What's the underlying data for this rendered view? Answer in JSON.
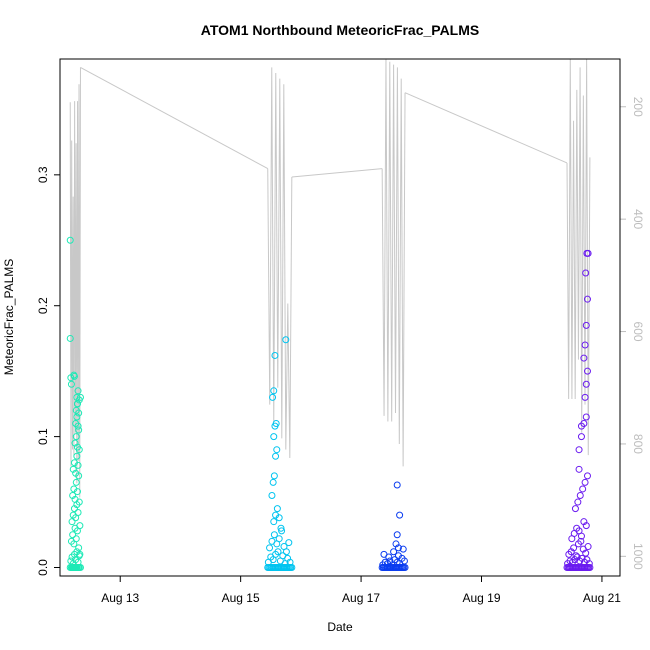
{
  "chart_data": {
    "type": "scatter",
    "title": "ATOM1 Northbound MeteoricFrac_PALMS",
    "xlabel": "Date",
    "ylabel": "MeteoricFrac_PALMS",
    "x_ticks": [
      "Aug 13",
      "Aug 15",
      "Aug 17",
      "Aug 19",
      "Aug 21"
    ],
    "x_tick_values": [
      13,
      15,
      17,
      19,
      21
    ],
    "xlim": [
      12.0,
      21.3
    ],
    "y_ticks": [
      "0.0",
      "0.1",
      "0.2",
      "0.3"
    ],
    "y_tick_values": [
      0,
      0.1,
      0.2,
      0.3
    ],
    "ylim": [
      -0.0065,
      0.3885
    ],
    "right_axis": {
      "ticks": [
        "200",
        "400",
        "600",
        "800",
        "1000"
      ],
      "tick_values": [
        200,
        400,
        600,
        800,
        1000
      ],
      "lim": [
        1035,
        115
      ],
      "color": "#bdbdbd"
    },
    "grid": false,
    "series": [
      {
        "color": "#1de9b6",
        "x": [
          12.17,
          12.19,
          12.2,
          12.21,
          12.22,
          12.23,
          12.24,
          12.25,
          12.26,
          12.27,
          12.28,
          12.3,
          12.32,
          12.34,
          12.18,
          12.2,
          12.22,
          12.24,
          12.26,
          12.28,
          12.3,
          12.32,
          12.19,
          12.21,
          12.23,
          12.25,
          12.27,
          12.29,
          12.31,
          12.33,
          12.2,
          12.22,
          12.24,
          12.26,
          12.28,
          12.3,
          12.32,
          12.21,
          12.23,
          12.25,
          12.27,
          12.29,
          12.31,
          12.22,
          12.24,
          12.26,
          12.28,
          12.3,
          12.32,
          12.25,
          12.27,
          12.29,
          12.31,
          12.26,
          12.28,
          12.3,
          12.27,
          12.29,
          12.31,
          12.28,
          12.3,
          12.32,
          12.19,
          12.17,
          12.17,
          12.18,
          12.23,
          12.24,
          12.29,
          12.34,
          12.33,
          12.31
        ],
        "y": [
          0,
          0,
          0,
          0,
          0,
          0,
          0,
          0,
          0,
          0,
          0,
          0,
          0,
          0,
          0.005,
          0.008,
          0.003,
          0.01,
          0.006,
          0.012,
          0.004,
          0.009,
          0.02,
          0.025,
          0.018,
          0.03,
          0.022,
          0.028,
          0.015,
          0.032,
          0.035,
          0.04,
          0.045,
          0.038,
          0.048,
          0.042,
          0.05,
          0.055,
          0.06,
          0.052,
          0.065,
          0.058,
          0.07,
          0.075,
          0.08,
          0.072,
          0.085,
          0.078,
          0.09,
          0.095,
          0.1,
          0.092,
          0.105,
          0.11,
          0.115,
          0.108,
          0.12,
          0.125,
          0.118,
          0.13,
          0.135,
          0.128,
          0.14,
          0.25,
          0.175,
          0.145,
          0.147,
          0.146,
          0.125,
          0.13,
          0.01,
          0.0
        ],
        "line_y": [
          192,
          840,
          260,
          810,
          360,
          820,
          190,
          780,
          265,
          870,
          190,
          830,
          160,
          895,
          130
        ]
      },
      {
        "color": "#00c4f0",
        "x": [
          15.45,
          15.47,
          15.49,
          15.51,
          15.53,
          15.55,
          15.57,
          15.59,
          15.61,
          15.63,
          15.65,
          15.67,
          15.69,
          15.71,
          15.73,
          15.75,
          15.77,
          15.79,
          15.81,
          15.83,
          15.85,
          15.46,
          15.5,
          15.54,
          15.58,
          15.62,
          15.66,
          15.7,
          15.74,
          15.78,
          15.82,
          15.48,
          15.52,
          15.56,
          15.6,
          15.64,
          15.68,
          15.72,
          15.76,
          15.8,
          15.55,
          15.58,
          15.61,
          15.64,
          15.67,
          15.52,
          15.54,
          15.56,
          15.58,
          15.6,
          15.55,
          15.57,
          15.59,
          15.53,
          15.55,
          15.57,
          15.75
        ],
        "y": [
          0,
          0,
          0,
          0,
          0,
          0,
          0,
          0,
          0,
          0,
          0,
          0,
          0,
          0,
          0,
          0,
          0,
          0,
          0,
          0,
          0,
          0.004,
          0.008,
          0.006,
          0.01,
          0.012,
          0.005,
          0.009,
          0.003,
          0.007,
          0.004,
          0.015,
          0.02,
          0.025,
          0.018,
          0.022,
          0.028,
          0.016,
          0.012,
          0.019,
          0.035,
          0.04,
          0.045,
          0.038,
          0.03,
          0.055,
          0.065,
          0.07,
          0.085,
          0.09,
          0.1,
          0.108,
          0.11,
          0.13,
          0.135,
          0.162,
          0.174
        ],
        "line_y": [
          310,
          730,
          130,
          760,
          140,
          700,
          150,
          790,
          160,
          810,
          550,
          825,
          325
        ]
      },
      {
        "color": "#0a3cf0",
        "x": [
          17.35,
          17.37,
          17.39,
          17.41,
          17.43,
          17.45,
          17.47,
          17.49,
          17.51,
          17.53,
          17.55,
          17.57,
          17.59,
          17.61,
          17.63,
          17.65,
          17.67,
          17.69,
          17.71,
          17.73,
          17.36,
          17.4,
          17.44,
          17.48,
          17.52,
          17.56,
          17.6,
          17.64,
          17.68,
          17.72,
          17.38,
          17.46,
          17.54,
          17.62,
          17.7,
          17.58,
          17.6,
          17.62,
          17.64,
          17.6
        ],
        "y": [
          0,
          0,
          0,
          0,
          0,
          0,
          0,
          0,
          0,
          0,
          0,
          0,
          0,
          0,
          0,
          0,
          0,
          0,
          0,
          0,
          0.002,
          0.004,
          0.003,
          0.005,
          0.002,
          0.006,
          0.004,
          0.003,
          0.007,
          0.005,
          0.01,
          0.008,
          0.012,
          0.009,
          0.014,
          0.018,
          0.025,
          0.015,
          0.04,
          0.063
        ],
        "line_y": [
          310,
          750,
          115,
          760,
          120,
          760,
          125,
          745,
          130,
          800,
          150,
          840,
          175
        ]
      },
      {
        "color": "#6a1bf0",
        "x": [
          20.42,
          20.44,
          20.46,
          20.48,
          20.5,
          20.52,
          20.54,
          20.56,
          20.58,
          20.6,
          20.62,
          20.64,
          20.66,
          20.68,
          20.7,
          20.72,
          20.74,
          20.76,
          20.78,
          20.8,
          20.43,
          20.47,
          20.51,
          20.55,
          20.59,
          20.63,
          20.67,
          20.71,
          20.75,
          20.79,
          20.45,
          20.49,
          20.53,
          20.57,
          20.61,
          20.65,
          20.69,
          20.73,
          20.77,
          20.5,
          20.54,
          20.58,
          20.62,
          20.66,
          20.7,
          20.74,
          20.56,
          20.6,
          20.64,
          20.68,
          20.72,
          20.76,
          20.62,
          20.66,
          20.7,
          20.74,
          20.72,
          20.74,
          20.76,
          20.7,
          20.72,
          20.74,
          20.76,
          20.73,
          20.75,
          20.77,
          20.62,
          20.66
        ],
        "y": [
          0,
          0,
          0,
          0,
          0,
          0,
          0,
          0,
          0,
          0,
          0,
          0,
          0,
          0,
          0,
          0,
          0,
          0,
          0,
          0,
          0.003,
          0.005,
          0.004,
          0.006,
          0.008,
          0.005,
          0.007,
          0.004,
          0.006,
          0.003,
          0.01,
          0.012,
          0.015,
          0.009,
          0.018,
          0.02,
          0.014,
          0.011,
          0.016,
          0.022,
          0.026,
          0.03,
          0.028,
          0.024,
          0.035,
          0.032,
          0.045,
          0.05,
          0.055,
          0.06,
          0.065,
          0.07,
          0.09,
          0.1,
          0.11,
          0.115,
          0.13,
          0.14,
          0.15,
          0.16,
          0.17,
          0.185,
          0.205,
          0.225,
          0.24,
          0.24,
          0.075,
          0.108
        ],
        "line_y": [
          300,
          720,
          115,
          720,
          225,
          720,
          170,
          650,
          130,
          780,
          180,
          730,
          115,
          820,
          290
        ]
      }
    ]
  }
}
